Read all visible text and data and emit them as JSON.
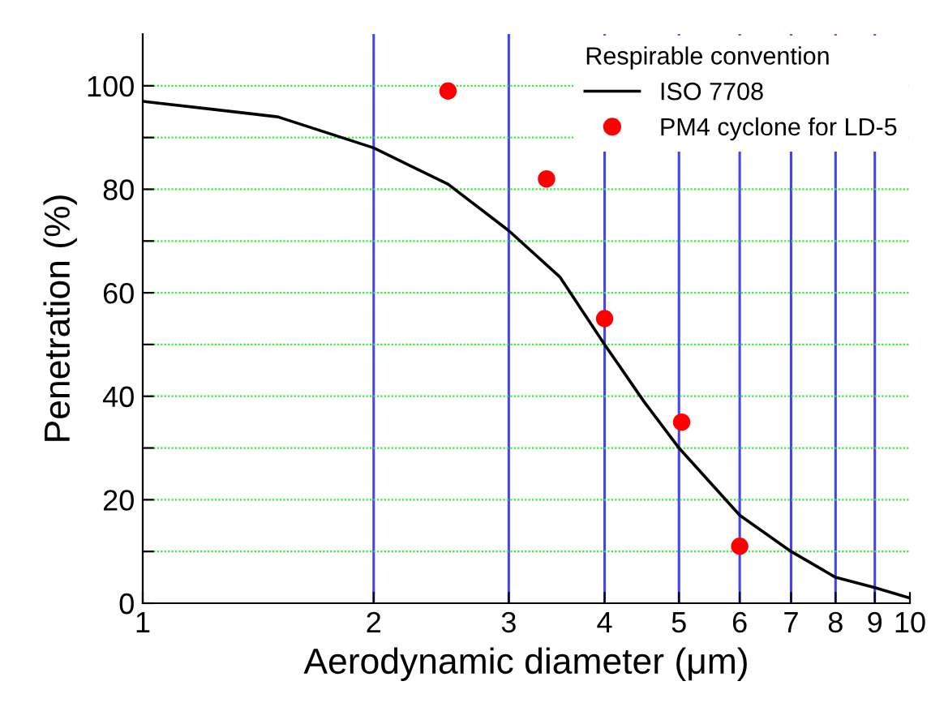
{
  "chart_data": {
    "type": "line",
    "xlabel": "Aerodynamic diameter (μm)",
    "ylabel": "Penetration (%)",
    "legend_title": "Respirable convention",
    "log": "x",
    "xlim": [
      1,
      10
    ],
    "xticks": [
      1,
      2,
      3,
      4,
      5,
      6,
      7,
      8,
      9,
      10
    ],
    "ylim": [
      0,
      110
    ],
    "yticks": [
      0,
      {
        "value": 10,
        "label": null
      },
      20,
      {
        "value": 30,
        "label": null
      },
      40,
      {
        "value": 50,
        "label": null
      },
      60,
      {
        "value": 70,
        "label": null
      },
      80,
      {
        "value": 90,
        "label": null
      },
      100
    ],
    "grid": true,
    "legend": "top right",
    "series": [
      {
        "name": "ISO 7708",
        "color": "#000000",
        "marker": "none",
        "line_style": "solid",
        "x": [
          1,
          1.5,
          2,
          2.5,
          3,
          3.5,
          4,
          4.5,
          5,
          6,
          7,
          8,
          9,
          10
        ],
        "values": [
          97,
          94,
          88,
          81,
          72,
          63,
          50,
          39,
          30,
          17,
          10,
          5,
          3,
          1
        ]
      },
      {
        "name": "PM4 cyclone for LD-5",
        "type": "scatter",
        "color": "#ff0000",
        "marker": "circle",
        "x": [
          2.5,
          3.36,
          4.0,
          5.04,
          6.0
        ],
        "values": [
          99,
          82,
          55,
          35,
          11
        ]
      }
    ]
  }
}
